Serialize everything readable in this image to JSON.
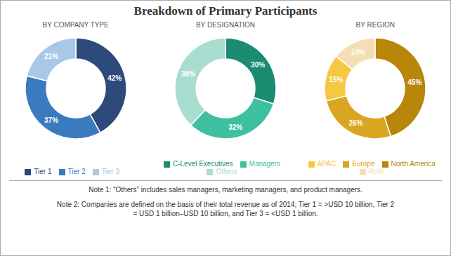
{
  "title": "Breakdown of Primary Participants",
  "annotations": [
    "Note 1: “Others” includes sales managers, marketing managers, and product managers.",
    "Note 2: Companies are defined on the basis of their total revenue as of 2014; Tier 1 = >USD 10 billion, Tier 2\n= USD 1 billion–USD 10 billion, and Tier 3 = <USD 1 billion."
  ],
  "chart_data": [
    {
      "type": "pie",
      "subtitle": "BY COMPANY TYPE",
      "categories": [
        "Tier 1",
        "Tier 2",
        "Tier 3"
      ],
      "values": [
        42,
        37,
        21
      ],
      "value_labels": [
        "42%",
        "37%",
        "21%"
      ],
      "colors": [
        "#2E4A7A",
        "#3A7ABF",
        "#A8C8E8"
      ],
      "data_labels": true,
      "legend": "bottom"
    },
    {
      "type": "pie",
      "subtitle": "BY DESIGNATION",
      "categories": [
        "C-Level Executives",
        "Managers",
        "Others"
      ],
      "values": [
        30,
        32,
        38
      ],
      "value_labels": [
        "30%",
        "32%",
        "38%"
      ],
      "colors": [
        "#1A8C72",
        "#3DBFA0",
        "#A8DDD0"
      ],
      "data_labels": true,
      "legend": "bottom"
    },
    {
      "type": "pie",
      "subtitle": "BY REGION",
      "categories": [
        "North America",
        "Europe",
        "APAC",
        "RoW"
      ],
      "values": [
        45,
        26,
        15,
        14
      ],
      "value_labels": [
        "45%",
        "26%",
        "15%",
        "14%"
      ],
      "colors": [
        "#B8860B",
        "#DAA520",
        "#F5C842",
        "#F5DEB3"
      ],
      "data_labels": true,
      "legend": "bottom"
    }
  ]
}
